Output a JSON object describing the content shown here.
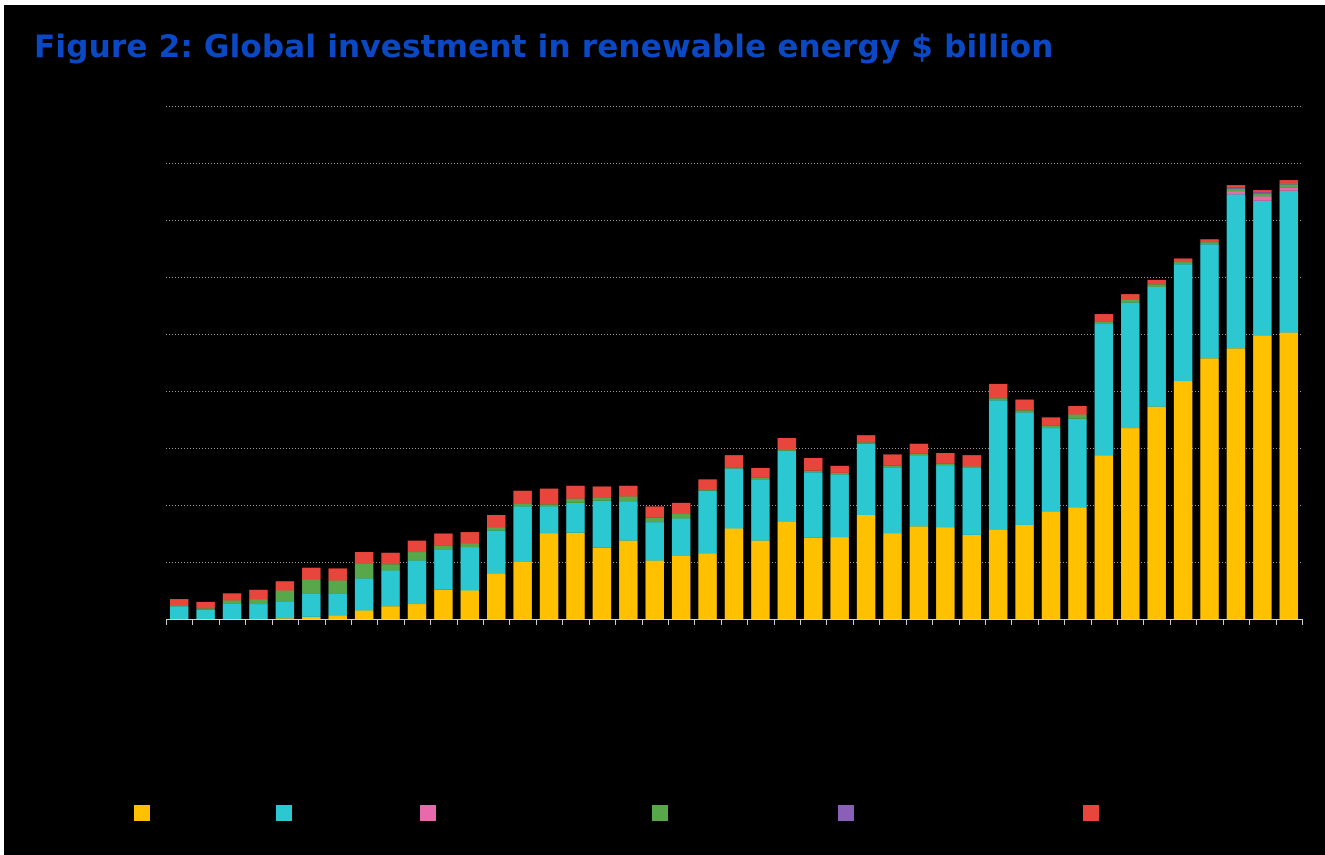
{
  "chart_data": {
    "type": "bar",
    "stacked": true,
    "title": "Figure 2: Global investment in renewable energy $ billion",
    "xlabel": "",
    "ylabel": "",
    "ylim": [
      0,
      360
    ],
    "y_gridlines": [
      40,
      80,
      120,
      160,
      200,
      240,
      280,
      320,
      360
    ],
    "grid": true,
    "legend_position": "bottom",
    "num_bars": 43,
    "colors": {
      "title": "#0a48c4",
      "background": "#000000",
      "gridline": "#9a9a9a",
      "axis": "#cfcfcf"
    },
    "series": [
      {
        "color": "#ffc000",
        "values": [
          0,
          0,
          0,
          0,
          0.5,
          1.5,
          2.5,
          6,
          9,
          10.5,
          20.5,
          20,
          32,
          40,
          60,
          60.5,
          50,
          55,
          41,
          44.5,
          46,
          63.5,
          55,
          68.5,
          57,
          57.5,
          73,
          60,
          65,
          64.5,
          59,
          63,
          66,
          75.5,
          78.5,
          115,
          134,
          149,
          167,
          183,
          190,
          199,
          201
        ]
      },
      {
        "color": "#2bc8d2",
        "values": [
          9,
          6.5,
          11,
          10.5,
          12,
          16.5,
          15.5,
          22.5,
          25,
          30.5,
          28.5,
          30.5,
          30,
          39,
          19,
          21,
          33,
          27.5,
          27,
          26,
          44,
          42,
          43,
          49.5,
          46,
          44,
          50,
          46.5,
          50,
          43.5,
          47,
          90.5,
          79,
          58.5,
          62,
          92,
          88,
          84,
          82,
          80,
          108,
          94.5,
          99.5
        ]
      },
      {
        "color": "#e86aaa",
        "values": [
          0,
          0,
          0,
          0,
          0,
          0,
          0,
          0,
          0,
          0,
          0,
          0,
          0,
          0,
          0,
          0,
          0,
          0,
          0,
          0,
          0,
          0,
          0,
          0,
          0,
          0,
          0,
          0,
          0,
          0,
          0,
          0,
          0,
          0,
          0,
          0,
          0,
          0,
          0,
          0,
          2,
          3,
          2
        ]
      },
      {
        "color": "#58a84b",
        "values": [
          0.5,
          1,
          2,
          3.5,
          7.5,
          10,
          9,
          10.5,
          4.5,
          6,
          2.5,
          2.5,
          2.5,
          2,
          1.5,
          3,
          2.5,
          3.5,
          3,
          3.5,
          0.5,
          1,
          1,
          1,
          1,
          1,
          1,
          1,
          1,
          1,
          1,
          1.5,
          1.5,
          1.5,
          3,
          2,
          2.5,
          2,
          1.5,
          1.5,
          2,
          2,
          2.5
        ]
      },
      {
        "color": "#8a5fb8",
        "values": [
          0,
          0,
          0,
          0,
          0,
          0,
          0,
          0,
          0,
          0,
          0,
          0,
          0,
          0,
          0,
          0,
          0,
          0,
          0,
          0,
          0,
          0,
          0,
          0,
          0,
          0,
          0,
          0,
          0,
          0,
          0,
          0,
          0,
          0,
          0,
          0,
          0,
          0,
          0,
          0,
          1,
          1,
          1
        ]
      },
      {
        "color": "#e8463c",
        "values": [
          4.5,
          4.5,
          5,
          6.5,
          6.5,
          8,
          8.5,
          8,
          8,
          8,
          8.5,
          8,
          8.5,
          9,
          11,
          9,
          7.5,
          7.5,
          8,
          7.5,
          7.5,
          8.5,
          7,
          8,
          9,
          5,
          5,
          8,
          7,
          7.5,
          8,
          10,
          7.5,
          6,
          6,
          5,
          3.5,
          3,
          2.5,
          2,
          1.5,
          1.5,
          2
        ]
      }
    ]
  },
  "legend": [
    {
      "color": "#ffc000"
    },
    {
      "color": "#2bc8d2"
    },
    {
      "color": "#e86aaa"
    },
    {
      "color": "#58a84b"
    },
    {
      "color": "#8a5fb8"
    },
    {
      "color": "#e8463c"
    }
  ]
}
